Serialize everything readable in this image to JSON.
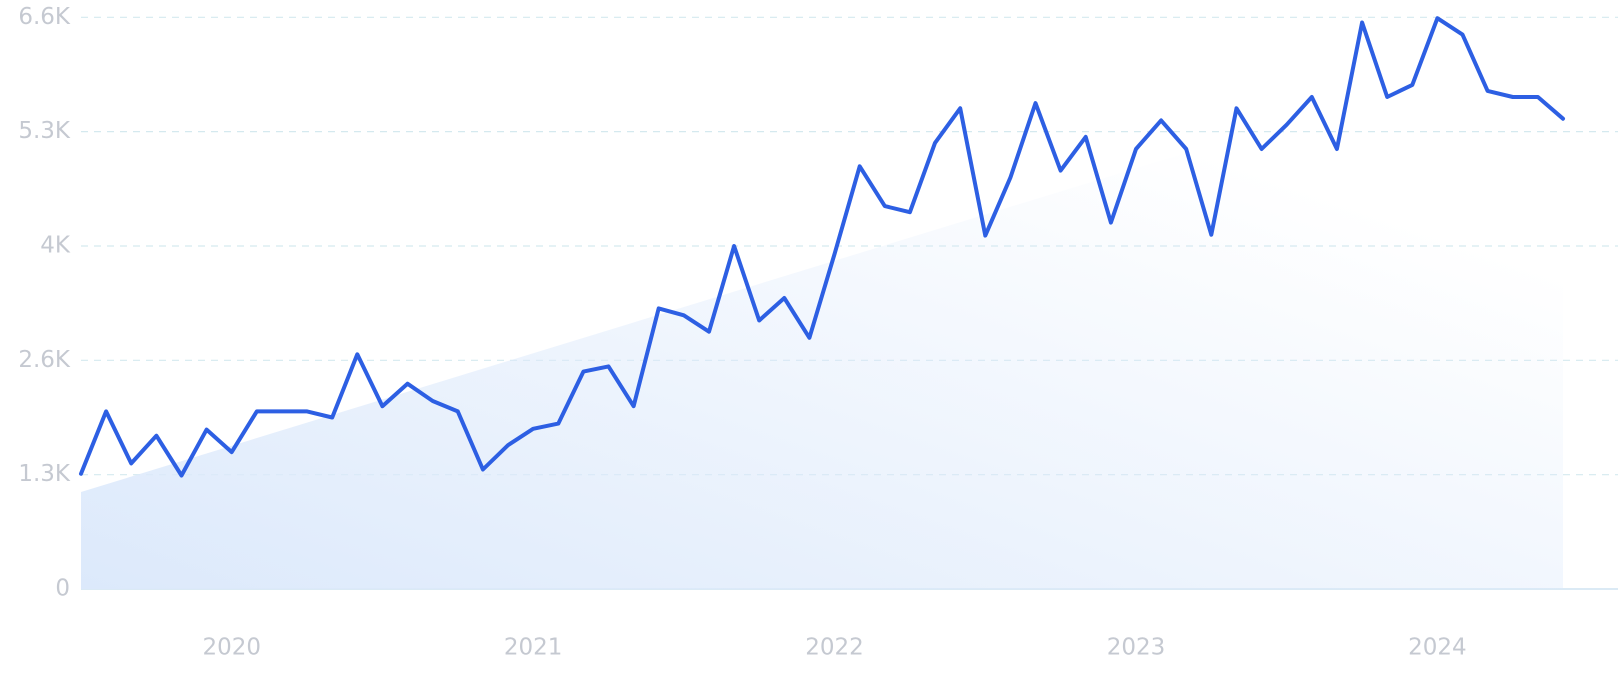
{
  "chart_data": {
    "type": "line",
    "categories": [
      null,
      null,
      null,
      null,
      null,
      null,
      "2020",
      null,
      null,
      null,
      null,
      null,
      null,
      null,
      null,
      null,
      null,
      null,
      "2021",
      null,
      null,
      null,
      null,
      null,
      null,
      null,
      null,
      null,
      null,
      null,
      "2022",
      null,
      null,
      null,
      null,
      null,
      null,
      null,
      null,
      null,
      null,
      null,
      "2023",
      null,
      null,
      null,
      null,
      null,
      null,
      null,
      null,
      null,
      null,
      null,
      "2024",
      null,
      null,
      null,
      null,
      null
    ],
    "values": [
      1330,
      2050,
      1450,
      1770,
      1310,
      1840,
      1580,
      2050,
      2050,
      2050,
      1980,
      2710,
      2110,
      2370,
      2170,
      2050,
      1380,
      1660,
      1850,
      1910,
      2510,
      2570,
      2110,
      3240,
      3160,
      2970,
      3960,
      3100,
      3360,
      2900,
      3870,
      4880,
      4420,
      4350,
      5150,
      5550,
      4080,
      4750,
      5610,
      4830,
      5220,
      4230,
      5080,
      5410,
      5080,
      4090,
      5550,
      5080,
      5360,
      5680,
      5080,
      6540,
      5680,
      5820,
      6590,
      6400,
      5750,
      5680,
      5680,
      5430
    ],
    "color": "#2d5fe3",
    "trend_values": [
      1120,
      6370
    ],
    "trend_color": "#dce9fb",
    "ylim": [
      0,
      6800
    ],
    "yticks": [
      0,
      {
        "value": 1320,
        "label": "1.3K"
      },
      {
        "value": 2640,
        "label": "2.6K"
      },
      {
        "value": 3960,
        "label": "4K"
      },
      {
        "value": 5280,
        "label": "5.3K"
      },
      {
        "value": 6600,
        "label": "6.6K"
      }
    ],
    "grid": true
  }
}
